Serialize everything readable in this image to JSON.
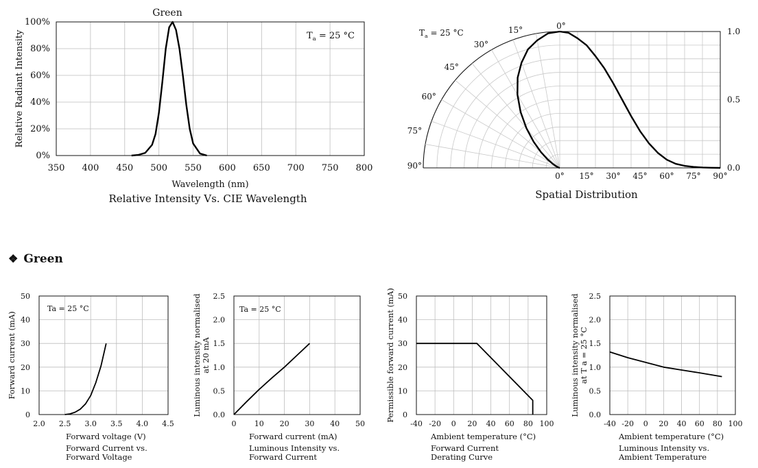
{
  "section_heading": {
    "symbol": "❖",
    "title": "Green"
  },
  "chart_data": [
    {
      "id": "spectrum",
      "type": "line",
      "title": "Green",
      "caption": "Relative Intensity Vs. CIE Wavelength",
      "xlabel": "Wavelength (nm)",
      "ylabel": "Relative Radiant Intensity",
      "annotation": "Ta = 25 °C",
      "xlim": [
        350,
        800
      ],
      "ylim": [
        0,
        100
      ],
      "xticks": [
        350,
        400,
        450,
        500,
        550,
        600,
        650,
        700,
        750,
        800
      ],
      "yticks": [
        0,
        20,
        40,
        60,
        80,
        100
      ],
      "ytick_labels": [
        "0%",
        "20%",
        "40%",
        "60%",
        "80%",
        "100%"
      ],
      "grid": true,
      "series": [
        {
          "x": [
            460,
            470,
            480,
            490,
            495,
            500,
            505,
            510,
            515,
            520,
            525,
            530,
            535,
            540,
            545,
            550,
            560,
            570
          ],
          "y": [
            0,
            0.5,
            2,
            8,
            16,
            32,
            55,
            80,
            96,
            100,
            94,
            80,
            60,
            38,
            20,
            9,
            1.5,
            0
          ]
        }
      ]
    },
    {
      "id": "spatial",
      "type": "line",
      "subtype": "polar-radiation",
      "caption": "Spatial Distribution",
      "annotation": "Ta = 25 °C",
      "angle_labels": [
        "0°",
        "15°",
        "30°",
        "45°",
        "60°",
        "75°",
        "90°"
      ],
      "x_tick_labels": [
        "0°",
        "15°",
        "30°",
        "45°",
        "60°",
        "75°",
        "90°"
      ],
      "xlim": [
        0,
        90
      ],
      "ylim": [
        0,
        1.0
      ],
      "y_tick_labels": [
        "0.0",
        "0.5",
        "1.0"
      ],
      "yticks": [
        0,
        0.5,
        1.0
      ],
      "grid": true,
      "series": [
        {
          "x": [
            0,
            5,
            10,
            15,
            20,
            25,
            30,
            35,
            40,
            45,
            50,
            55,
            60,
            65,
            70,
            75,
            80,
            85,
            90
          ],
          "y": [
            1.0,
            0.99,
            0.95,
            0.9,
            0.82,
            0.73,
            0.62,
            0.5,
            0.38,
            0.27,
            0.18,
            0.11,
            0.06,
            0.03,
            0.015,
            0.007,
            0.003,
            0.001,
            0.0
          ]
        }
      ]
    },
    {
      "id": "iv",
      "type": "line",
      "caption_lines": [
        "Forward Current vs.",
        "Forward Voltage"
      ],
      "xlabel": "Forward voltage (V)",
      "ylabel": "Forward current (mA)",
      "annotation": "Ta = 25 °C",
      "xlim": [
        2.0,
        4.5
      ],
      "ylim": [
        0,
        50
      ],
      "xticks": [
        2.0,
        2.5,
        3.0,
        3.5,
        4.0,
        4.5
      ],
      "xtick_labels": [
        "2.0",
        "2.5",
        "3.0",
        "3.5",
        "4.0",
        "4.5"
      ],
      "yticks": [
        0,
        10,
        20,
        30,
        40,
        50
      ],
      "grid": true,
      "series": [
        {
          "x": [
            2.5,
            2.6,
            2.7,
            2.8,
            2.9,
            3.0,
            3.1,
            3.2,
            3.3
          ],
          "y": [
            0,
            0.3,
            1.0,
            2.3,
            4.5,
            8.0,
            13.5,
            20.5,
            30.0
          ]
        }
      ]
    },
    {
      "id": "li",
      "type": "line",
      "caption_lines": [
        "Luminous Intensity vs.",
        "Forward Current"
      ],
      "xlabel": "Forward current (mA)",
      "ylabel_lines": [
        "Luminous intensity normalised",
        "at 20 mA"
      ],
      "annotation": "Ta = 25 °C",
      "xlim": [
        0,
        50
      ],
      "ylim": [
        0,
        2.5
      ],
      "xticks": [
        0,
        10,
        20,
        30,
        40,
        50
      ],
      "yticks": [
        0,
        0.5,
        1.0,
        1.5,
        2.0,
        2.5
      ],
      "ytick_labels": [
        "0.0",
        "0.5",
        "1.0",
        "1.5",
        "2.0",
        "2.5"
      ],
      "grid": true,
      "series": [
        {
          "x": [
            0,
            5,
            10,
            15,
            20,
            25,
            30
          ],
          "y": [
            0,
            0.27,
            0.53,
            0.77,
            1.0,
            1.25,
            1.5
          ]
        }
      ]
    },
    {
      "id": "derating",
      "type": "line",
      "caption_lines": [
        "Forward Current",
        "Derating  Curve"
      ],
      "xlabel": "Ambient temperature (°C)",
      "ylabel": "Permissible forward current (mA)",
      "xlim": [
        -40,
        100
      ],
      "ylim": [
        0,
        50
      ],
      "xticks": [
        -40,
        -20,
        0,
        20,
        40,
        60,
        80,
        100
      ],
      "yticks": [
        0,
        10,
        20,
        30,
        40,
        50
      ],
      "grid": true,
      "series": [
        {
          "x": [
            -40,
            25,
            85,
            85
          ],
          "y": [
            30,
            30,
            6,
            0
          ]
        }
      ]
    },
    {
      "id": "lt",
      "type": "line",
      "caption_lines": [
        "Luminous Intensity vs.",
        "Ambient Temperature"
      ],
      "xlabel": "Ambient temperature (°C)",
      "ylabel_lines": [
        "Luminous intensity normalised",
        "at T a = 25 °C"
      ],
      "xlim": [
        -40,
        100
      ],
      "ylim": [
        0,
        2.5
      ],
      "xticks": [
        -40,
        -20,
        0,
        20,
        40,
        60,
        80,
        100
      ],
      "yticks": [
        0,
        0.5,
        1.0,
        1.5,
        2.0,
        2.5
      ],
      "ytick_labels": [
        "0.0",
        "0.5",
        "1.0",
        "1.5",
        "2.0",
        "2.5"
      ],
      "grid": true,
      "series": [
        {
          "x": [
            -40,
            -20,
            0,
            20,
            40,
            60,
            85
          ],
          "y": [
            1.32,
            1.2,
            1.1,
            1.0,
            0.94,
            0.88,
            0.8
          ]
        }
      ]
    }
  ]
}
